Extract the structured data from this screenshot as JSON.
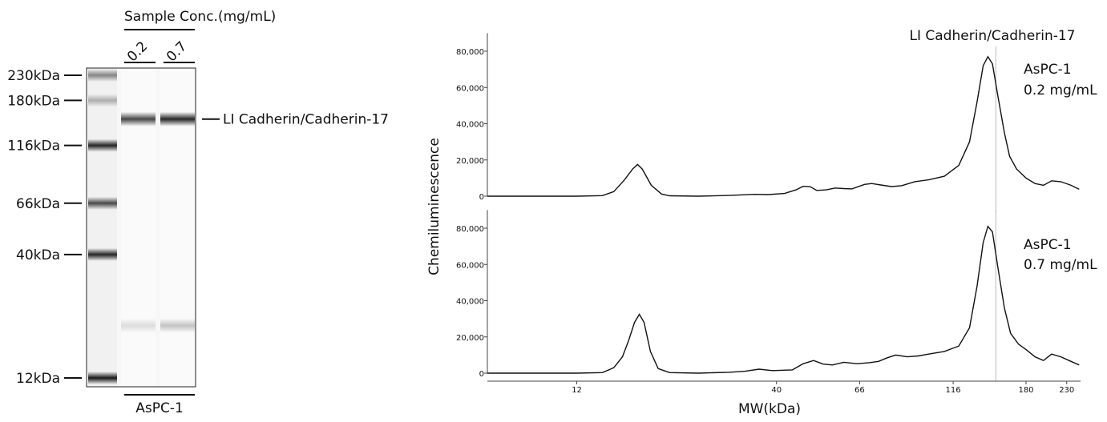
{
  "gel": {
    "header": "Sample Conc.(mg/mL)",
    "lanes": [
      {
        "label": "0.2",
        "bands": [
          {
            "mw": 150,
            "intensity": 0.72
          },
          {
            "mw": 20,
            "intensity": 0.12
          }
        ]
      },
      {
        "label": "0.7",
        "bands": [
          {
            "mw": 150,
            "intensity": 0.85
          },
          {
            "mw": 20,
            "intensity": 0.22
          }
        ]
      }
    ],
    "ladder": [
      {
        "label": "230kDa",
        "mw": 230,
        "intensity": 0.45
      },
      {
        "label": "180kDa",
        "mw": 180,
        "intensity": 0.28
      },
      {
        "label": "116kDa",
        "mw": 116,
        "intensity": 0.85
      },
      {
        "label": "66kDa",
        "mw": 66,
        "intensity": 0.7
      },
      {
        "label": "40kDa",
        "mw": 40,
        "intensity": 0.85
      },
      {
        "label": "12kDa",
        "mw": 12,
        "intensity": 0.9
      }
    ],
    "band_label": "LI Cadherin/Cadherin-17",
    "band_mw": 150,
    "sample_label": "AsPC-1"
  },
  "chart_data": {
    "type": "line",
    "xlabel": "MW(kDa)",
    "ylabel": "Chemiluminescence",
    "xscale": "log",
    "xlim": [
      7,
      250
    ],
    "x_ticks": [
      12,
      40,
      66,
      116,
      180,
      230
    ],
    "y_ticks": [
      0,
      20000,
      40000,
      60000,
      80000
    ],
    "y_tick_labels": [
      "0",
      "20,000",
      "40,000",
      "60,000",
      "80,000"
    ],
    "ylim": [
      0,
      90000
    ],
    "marker": {
      "mw": 150,
      "label": "LI Cadherin/Cadherin-17"
    },
    "panels": [
      {
        "label_line1": "AsPC-1",
        "label_line2": "0.2 mg/mL",
        "points": [
          [
            7,
            0
          ],
          [
            12,
            0
          ],
          [
            14,
            300
          ],
          [
            15,
            2500
          ],
          [
            16,
            9000
          ],
          [
            16.8,
            15000
          ],
          [
            17.3,
            17500
          ],
          [
            17.8,
            15000
          ],
          [
            18.8,
            6000
          ],
          [
            20,
            1200
          ],
          [
            21,
            200
          ],
          [
            25,
            0
          ],
          [
            30,
            400
          ],
          [
            35,
            1000
          ],
          [
            38,
            900
          ],
          [
            42,
            1500
          ],
          [
            45,
            3500
          ],
          [
            47,
            5500
          ],
          [
            49,
            5200
          ],
          [
            51,
            3200
          ],
          [
            54,
            3500
          ],
          [
            57,
            4500
          ],
          [
            60,
            4200
          ],
          [
            63,
            4000
          ],
          [
            68,
            6500
          ],
          [
            71,
            7000
          ],
          [
            75,
            6200
          ],
          [
            80,
            5300
          ],
          [
            85,
            5800
          ],
          [
            92,
            8000
          ],
          [
            100,
            9000
          ],
          [
            110,
            11000
          ],
          [
            120,
            17000
          ],
          [
            128,
            30000
          ],
          [
            134,
            52000
          ],
          [
            139,
            72000
          ],
          [
            143,
            77000
          ],
          [
            147,
            73000
          ],
          [
            152,
            55000
          ],
          [
            158,
            35000
          ],
          [
            163,
            22000
          ],
          [
            170,
            15000
          ],
          [
            180,
            10000
          ],
          [
            190,
            7000
          ],
          [
            200,
            6000
          ],
          [
            210,
            8500
          ],
          [
            222,
            8000
          ],
          [
            236,
            6000
          ],
          [
            248,
            3800
          ]
        ]
      },
      {
        "label_line1": "AsPC-1",
        "label_line2": "0.7 mg/mL",
        "points": [
          [
            7,
            0
          ],
          [
            12,
            0
          ],
          [
            14,
            300
          ],
          [
            15,
            3000
          ],
          [
            15.8,
            9000
          ],
          [
            16.4,
            18000
          ],
          [
            17,
            28000
          ],
          [
            17.5,
            32500
          ],
          [
            18,
            28000
          ],
          [
            18.7,
            12000
          ],
          [
            19.6,
            2500
          ],
          [
            21,
            300
          ],
          [
            25,
            0
          ],
          [
            30,
            500
          ],
          [
            33,
            1000
          ],
          [
            36,
            2200
          ],
          [
            39,
            1400
          ],
          [
            44,
            1800
          ],
          [
            47,
            5200
          ],
          [
            50,
            7000
          ],
          [
            53,
            5000
          ],
          [
            56,
            4500
          ],
          [
            60,
            6000
          ],
          [
            65,
            5200
          ],
          [
            70,
            5800
          ],
          [
            74,
            6500
          ],
          [
            78,
            8500
          ],
          [
            82,
            10000
          ],
          [
            88,
            9000
          ],
          [
            94,
            9500
          ],
          [
            100,
            10500
          ],
          [
            110,
            12000
          ],
          [
            120,
            15000
          ],
          [
            128,
            25000
          ],
          [
            134,
            48000
          ],
          [
            139,
            72000
          ],
          [
            143,
            81000
          ],
          [
            147,
            78000
          ],
          [
            152,
            58000
          ],
          [
            158,
            36000
          ],
          [
            164,
            22000
          ],
          [
            172,
            16000
          ],
          [
            180,
            13000
          ],
          [
            190,
            9000
          ],
          [
            200,
            7000
          ],
          [
            210,
            10500
          ],
          [
            222,
            9000
          ],
          [
            236,
            6500
          ],
          [
            248,
            4500
          ]
        ]
      }
    ]
  }
}
